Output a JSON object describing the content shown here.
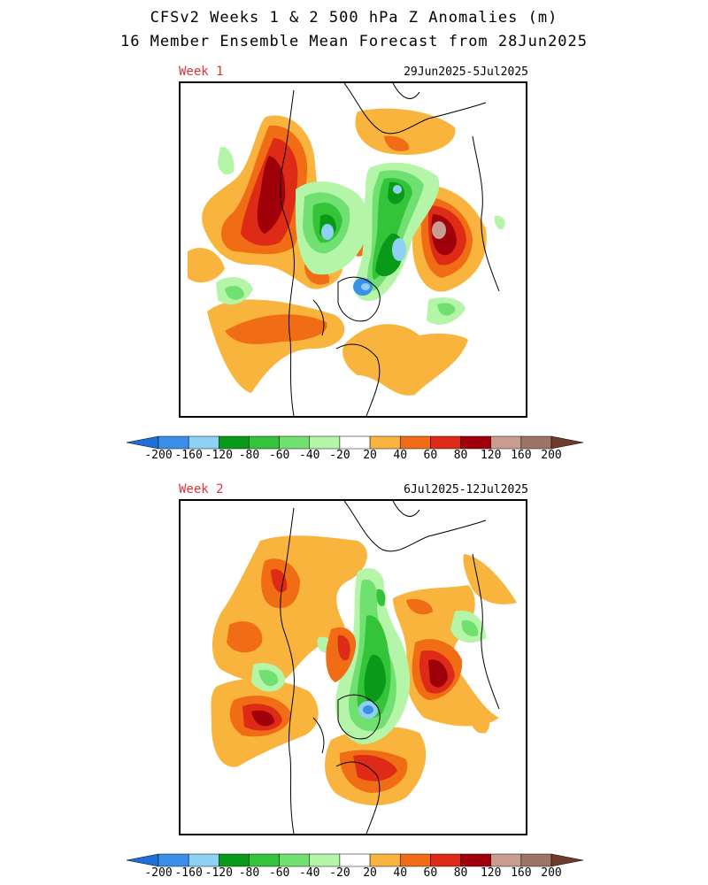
{
  "header": {
    "title_line1": "CFSv2 Weeks 1 & 2 500 hPa Z Anomalies (m)",
    "title_line2": "16 Member Ensemble Mean Forecast from 28Jun2025"
  },
  "panels": [
    {
      "label": "Week 1",
      "dates": "29Jun2025-5Jul2025"
    },
    {
      "label": "Week 2",
      "dates": "6Jul2025-12Jul2025"
    }
  ],
  "colorbar": {
    "ticks": [
      "-200",
      "-160",
      "-120",
      "-80",
      "-60",
      "-40",
      "-20",
      "20",
      "40",
      "60",
      "80",
      "120",
      "160",
      "200"
    ],
    "colors": [
      "#1f6fd6",
      "#3b8fe8",
      "#8fd0f5",
      "#0a9a1a",
      "#33c43a",
      "#70e070",
      "#b4f5a8",
      "#ffffff",
      "#f8b43c",
      "#f06d15",
      "#de2b18",
      "#a0000a",
      "#c89c90",
      "#9c7468",
      "#6e3c2c"
    ]
  },
  "palette": {
    "orange": "#f8b43c",
    "dark_orange": "#f06d15",
    "red": "#de2b18",
    "dark_red": "#a0000a",
    "pink": "#c89c90",
    "light_green": "#b4f5a8",
    "green": "#70e070",
    "mid_green": "#33c43a",
    "dark_green": "#0a9a1a",
    "light_blue": "#8fd0f5",
    "blue": "#3b8fe8"
  }
}
